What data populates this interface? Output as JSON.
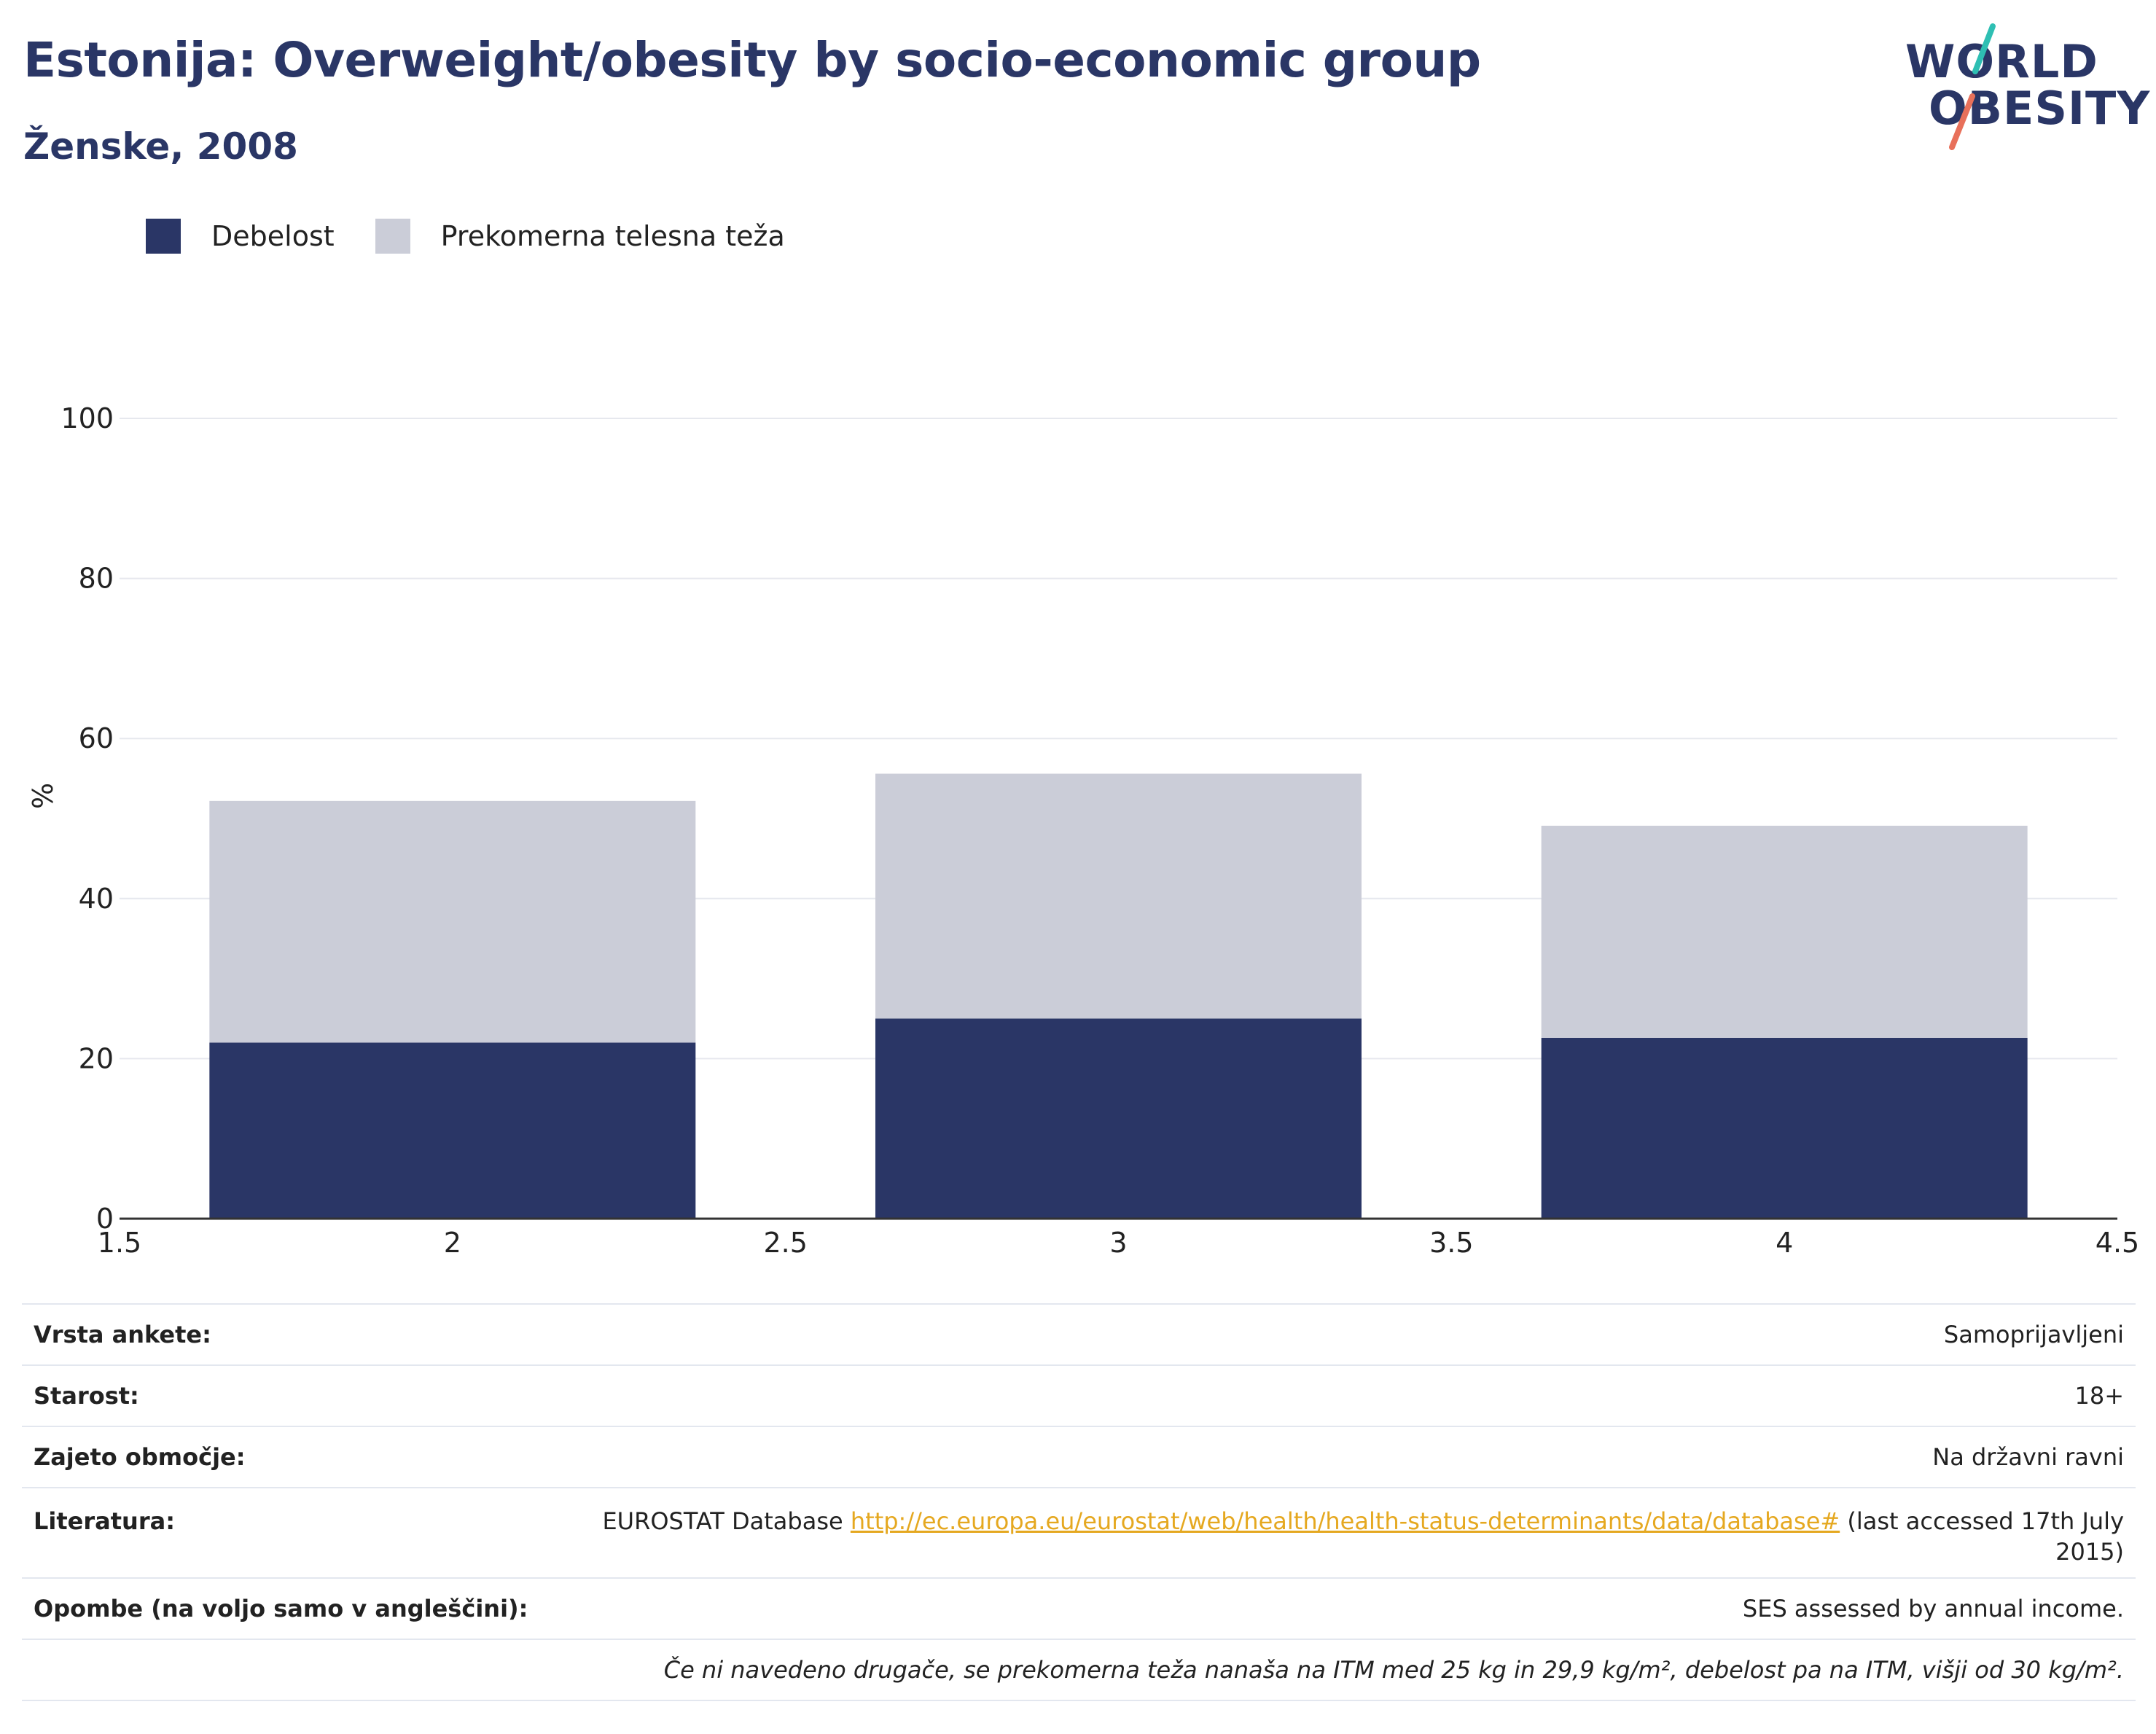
{
  "header": {
    "title": "Estonija: Overweight/obesity by socio-economic group",
    "subtitle": "Ženske, 2008"
  },
  "logo": {
    "line1": "WORLD",
    "line2": "OBESITY",
    "accent_teal": "#2ebfb3",
    "accent_coral": "#e8705a"
  },
  "legend": [
    {
      "label": "Debelost",
      "color": "#2a3666"
    },
    {
      "label": "Prekomerna telesna teža",
      "color": "#cbcdd8"
    }
  ],
  "chart_data": {
    "type": "bar",
    "stacked": true,
    "x": [
      2,
      3,
      4
    ],
    "series": [
      {
        "name": "Debelost",
        "values": [
          22.0,
          25.0,
          22.6
        ],
        "color": "#2a3666"
      },
      {
        "name": "Prekomerna telesna teža",
        "values": [
          30.2,
          30.6,
          26.5
        ],
        "color": "#cbcdd8"
      }
    ],
    "xlim": [
      1.5,
      4.5
    ],
    "xticks": [
      "1.5",
      "2",
      "2.5",
      "3",
      "3.5",
      "4",
      "4.5"
    ],
    "xtick_values": [
      1.5,
      2,
      2.5,
      3,
      3.5,
      4,
      4.5
    ],
    "ylim": [
      0,
      100
    ],
    "yticks": [
      "0",
      "20",
      "40",
      "60",
      "80",
      "100"
    ],
    "ytick_values": [
      0,
      20,
      40,
      60,
      80,
      100
    ],
    "ylabel": "%",
    "grid": true,
    "legend_position": "top-left"
  },
  "meta": {
    "survey_type": {
      "key": "Vrsta ankete:",
      "value": "Samoprijavljeni"
    },
    "age": {
      "key": "Starost:",
      "value": "18+"
    },
    "coverage": {
      "key": "Zajeto območje:",
      "value": "Na državni ravni"
    },
    "reference": {
      "key": "Literatura:",
      "prefix": "EUROSTAT Database ",
      "link": "http://ec.europa.eu/eurostat/web/health/health-status-determinants/data/database#",
      "suffix": " (last accessed 17th July",
      "suffix2": "2015)"
    },
    "notes": {
      "key": "Opombe (na voljo samo v angleščini):",
      "value": "SES assessed by annual income."
    },
    "footnote": "Če ni navedeno drugače, se prekomerna teža nanaša na ITM med 25 kg in 29,9 kg/m², debelost pa na ITM, višji od 30 kg/m²."
  }
}
